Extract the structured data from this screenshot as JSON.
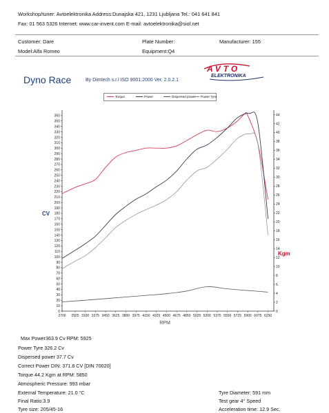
{
  "header": {
    "line1": "Workshop/tuner: Avtoelektronika   Address:Dunajska 421, 1231 Ljubljana   Tel.: 041 641 841",
    "line2": "Fax: 01 563 5326   Internet: www.car-invent.com   E-mail: avtoelektronika@siol.net"
  },
  "info": {
    "customer": "Customer:  Dare",
    "model": "Model:Alfa Romeo",
    "plate": "Plate Number:",
    "equipment": "Equipment:Q4",
    "manufacturer": "Manufacturer: 155"
  },
  "software": {
    "title": "Dyno Race",
    "subtitle": "By Dimtech s.r.l  ISO 9001:2000  Ver. 2.0.2.1"
  },
  "logo": {
    "text_top": "AVTO",
    "text_bottom": "ELEKTRONIKA",
    "color_top": "#c8102e",
    "color_bottom": "#1e2d6b"
  },
  "colors": {
    "torque": "#d83a5a",
    "power": "#333a52",
    "dispersed": "#555555",
    "tyre": "#888888",
    "cv_label": "#1f3f7a",
    "kgm_label": "#c8102e"
  },
  "chart_data": {
    "type": "line",
    "xlabel": "RPM",
    "ylabel_left": "CV",
    "ylabel_right": "Kgm",
    "x_ticks": [
      2700,
      2925,
      3100,
      3275,
      3450,
      3625,
      3800,
      3975,
      4150,
      4325,
      4500,
      4675,
      4850,
      5025,
      5200,
      5375,
      5550,
      5725,
      5900,
      6075,
      6250
    ],
    "y_left_ticks": [
      0,
      10,
      20,
      30,
      40,
      50,
      60,
      70,
      80,
      90,
      100,
      110,
      120,
      130,
      140,
      150,
      160,
      170,
      180,
      190,
      200,
      210,
      220,
      230,
      240,
      250,
      260,
      270,
      280,
      290,
      300,
      310,
      320,
      330,
      340,
      350,
      360
    ],
    "y_right_ticks": [
      0,
      2,
      4,
      6,
      8,
      10,
      12,
      14,
      16,
      18,
      20,
      22,
      24,
      26,
      28,
      30,
      32,
      34,
      36,
      38,
      40,
      42,
      44
    ],
    "xlim": [
      2700,
      6350
    ],
    "ylim_left": [
      0,
      370
    ],
    "ylim_right": [
      0,
      45
    ],
    "series": [
      {
        "name": "Torque",
        "axis": "right",
        "x": [
          2700,
          2925,
          3100,
          3275,
          3450,
          3625,
          3800,
          3975,
          4150,
          4325,
          4500,
          4675,
          4850,
          5025,
          5200,
          5375,
          5550,
          5725,
          5850,
          5900,
          6075,
          6250
        ],
        "y": [
          26.3,
          27.7,
          28.5,
          29.5,
          32.2,
          34.5,
          35.5,
          36.0,
          36.5,
          36.5,
          36.5,
          37.0,
          38.2,
          39.5,
          40.5,
          40.2,
          41.0,
          42.6,
          44.2,
          43.8,
          37.5,
          25.0
        ]
      },
      {
        "name": "Power",
        "axis": "left",
        "x": [
          2700,
          2925,
          3100,
          3275,
          3450,
          3625,
          3800,
          3975,
          4150,
          4325,
          4500,
          4675,
          4850,
          5025,
          5200,
          5375,
          5550,
          5725,
          5925,
          6075,
          6250
        ],
        "y": [
          97,
          112,
          124,
          138,
          158,
          178,
          193,
          206,
          216,
          229,
          241,
          258,
          280,
          298,
          306,
          320,
          337,
          356,
          363.9,
          346,
          170
        ]
      },
      {
        "name": "Dispersed power",
        "axis": "left",
        "x": [
          2700,
          3100,
          3450,
          3800,
          4150,
          4500,
          4850,
          5200,
          5550,
          5925,
          6250
        ],
        "y": [
          17,
          20,
          23,
          26,
          29,
          32,
          37,
          45,
          41,
          37.7,
          35
        ]
      },
      {
        "name": "Power Tyre",
        "axis": "left",
        "x": [
          2700,
          2925,
          3100,
          3275,
          3450,
          3625,
          3800,
          3975,
          4150,
          4325,
          4500,
          4675,
          4850,
          5025,
          5200,
          5375,
          5550,
          5725,
          5925,
          6075,
          6250
        ],
        "y": [
          78,
          92,
          102,
          117,
          135,
          154,
          167,
          178,
          187,
          195,
          205,
          220,
          241,
          258,
          265,
          280,
          298,
          318,
          326.2,
          308,
          140
        ]
      }
    ]
  },
  "stats": {
    "max_power": "Max   Power363.9 Cv RPM: 5925",
    "power_tyre": "Power Tyre        326.2 Cv",
    "dispersed": "Dispersed power    37.7 Cv",
    "correct_power": "Correct Power DIN:  371.8 CV  [DIN 70020]",
    "torque": "Torque 44.2  Kgm at RPM: 5850",
    "atmospheric": "Atmospheric Pressure:  993 mbar",
    "ext_temp": "External Temperature:    21.0 °C",
    "final_ratio": "Final Ratio:3.9",
    "tyre_size": "Tyre size: 205/45-16",
    "tyre_diameter": "Tyre Diameter:  591 mm",
    "test_gear": "Test gear 4° Speed",
    "acceleration": "Acceleration time:  12.9 Sec."
  }
}
